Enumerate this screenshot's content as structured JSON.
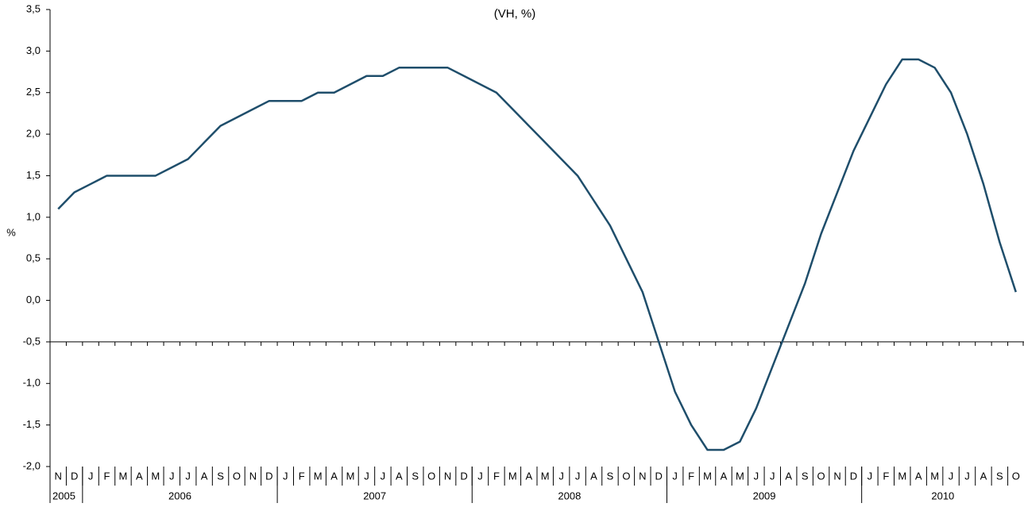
{
  "chart_data": {
    "type": "line",
    "title": "(VH, %)",
    "y_label": "%",
    "categories": [
      "N",
      "D",
      "J",
      "F",
      "M",
      "A",
      "M",
      "J",
      "J",
      "A",
      "S",
      "O",
      "N",
      "D",
      "J",
      "F",
      "M",
      "A",
      "M",
      "J",
      "J",
      "A",
      "S",
      "O",
      "N",
      "D",
      "J",
      "F",
      "M",
      "A",
      "M",
      "J",
      "J",
      "A",
      "S",
      "O",
      "N",
      "D",
      "J",
      "F",
      "M",
      "A",
      "M",
      "J",
      "J",
      "A",
      "S",
      "O",
      "N",
      "D",
      "J",
      "F",
      "M",
      "A",
      "M",
      "J",
      "J",
      "A",
      "S",
      "O"
    ],
    "year_labels": [
      "2005",
      "2006",
      "2007",
      "2008",
      "2009",
      "2010"
    ],
    "series": [
      {
        "color": "#1f4e6b",
        "values": [
          1.1,
          1.3,
          1.4,
          1.5,
          1.5,
          1.5,
          1.5,
          1.6,
          1.7,
          1.9,
          2.1,
          2.2,
          2.3,
          2.4,
          2.4,
          2.4,
          2.5,
          2.5,
          2.6,
          2.7,
          2.7,
          2.8,
          2.8,
          2.8,
          2.8,
          2.7,
          2.6,
          2.5,
          2.3,
          2.1,
          1.9,
          1.7,
          1.5,
          1.2,
          0.9,
          0.5,
          0.1,
          -0.5,
          -1.1,
          -1.5,
          -1.8,
          -1.8,
          -1.7,
          -1.3,
          -0.8,
          -0.3,
          0.2,
          0.8,
          1.3,
          1.8,
          2.2,
          2.6,
          2.9,
          2.9,
          2.8,
          2.5,
          2.0,
          1.4,
          0.7,
          0.1
        ]
      }
    ],
    "ylim": [
      -2.0,
      3.5
    ],
    "yticks": [
      {
        "value": -2.0,
        "label": "-2,0"
      },
      {
        "value": -1.5,
        "label": "-1,5"
      },
      {
        "value": -1.0,
        "label": "-1,0"
      },
      {
        "value": -0.5,
        "label": "-0,5"
      },
      {
        "value": 0.0,
        "label": "0,0"
      },
      {
        "value": 0.5,
        "label": "0,5"
      },
      {
        "value": 1.0,
        "label": "1,0"
      },
      {
        "value": 1.5,
        "label": "1,5"
      },
      {
        "value": 2.0,
        "label": "2,0"
      },
      {
        "value": 2.5,
        "label": "2,5"
      },
      {
        "value": 3.0,
        "label": "3,0"
      },
      {
        "value": 3.5,
        "label": "3,5"
      }
    ],
    "x_axis_crossing": -0.5
  }
}
